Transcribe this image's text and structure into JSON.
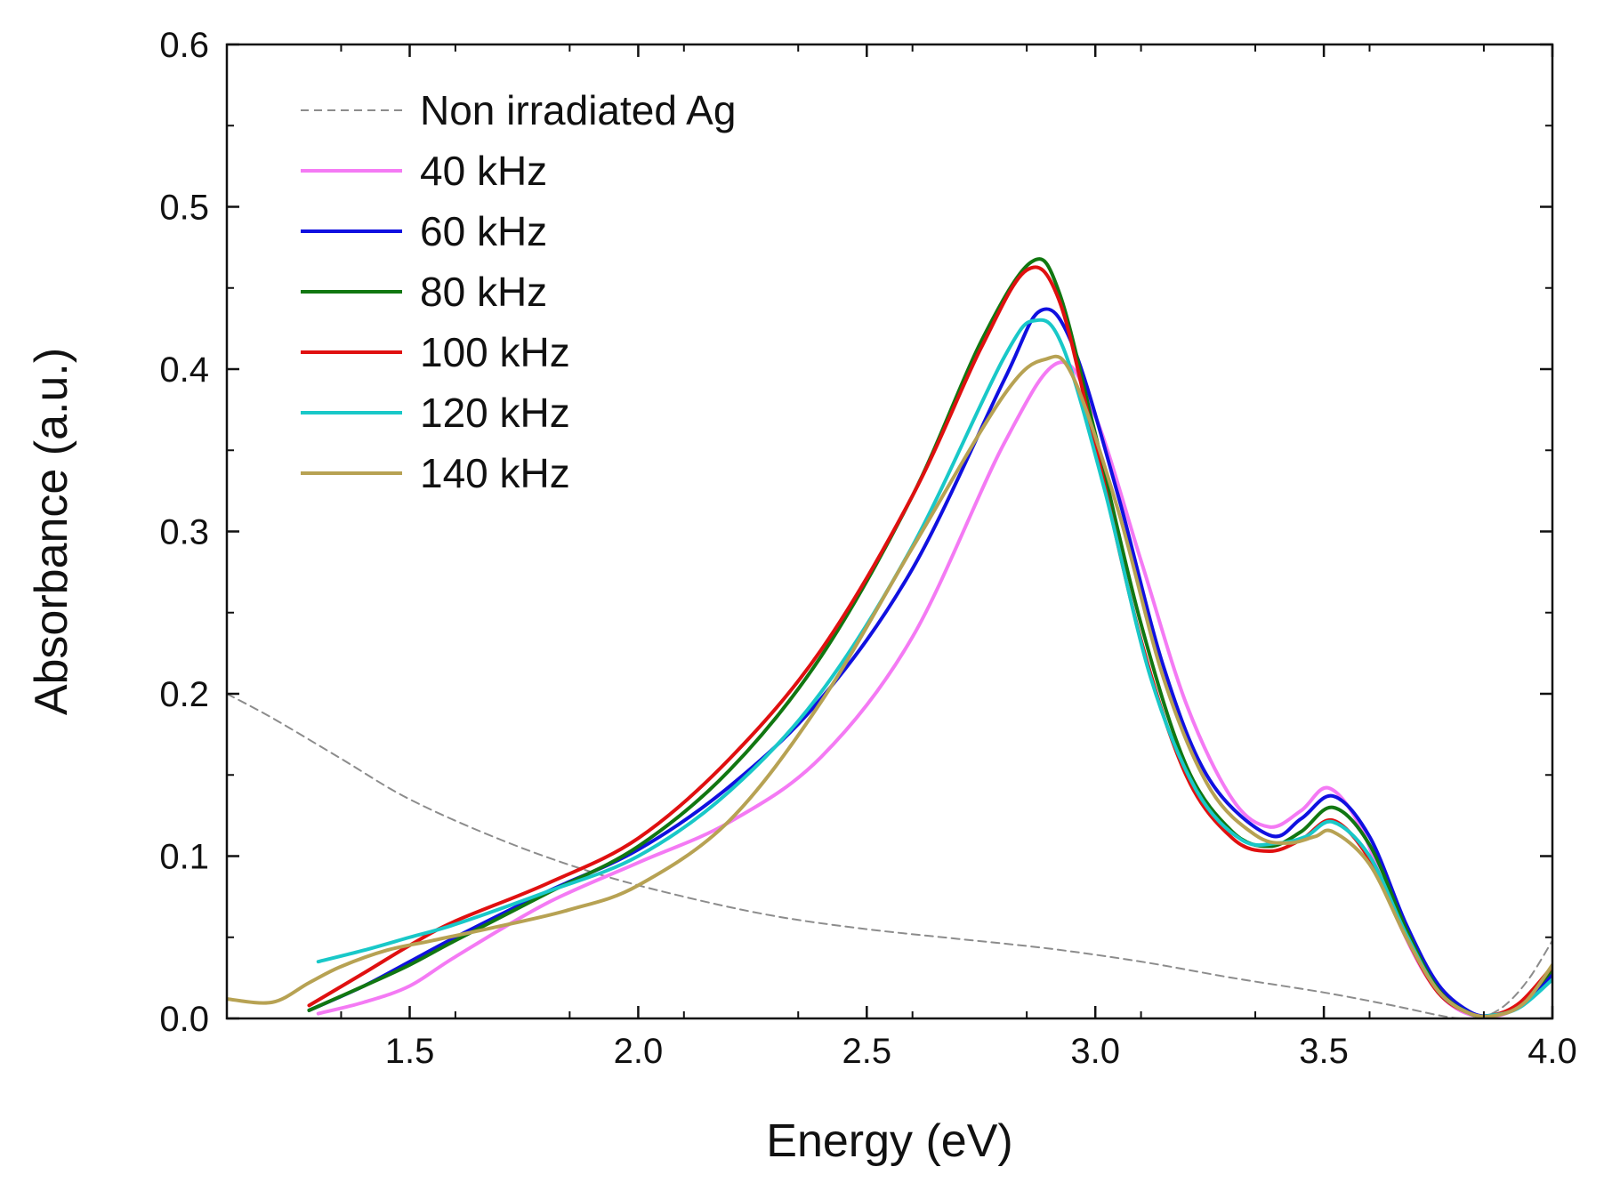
{
  "chart_data": {
    "type": "line",
    "title": "",
    "xlabel": "Energy (eV)",
    "ylabel": "Absorbance (a.u.)",
    "xlim": [
      1.1,
      4.0
    ],
    "ylim": [
      0.0,
      0.6
    ],
    "xticks": [
      1.5,
      2.0,
      2.5,
      3.0,
      3.5,
      4.0
    ],
    "yticks": [
      0.0,
      0.1,
      0.2,
      0.3,
      0.4,
      0.5,
      0.6
    ],
    "xtick_labels": [
      "1.5",
      "2.0",
      "2.5",
      "3.0",
      "3.5",
      "4.0"
    ],
    "ytick_labels": [
      "0.0",
      "0.1",
      "0.2",
      "0.3",
      "0.4",
      "0.5",
      "0.6"
    ],
    "grid": false,
    "legend": {
      "placement": "top-left",
      "entries": [
        "Non irradiated Ag",
        "40 kHz",
        "60 kHz",
        "80 kHz",
        "100 kHz",
        "120 kHz",
        "140 kHz"
      ]
    },
    "series": [
      {
        "name": "Non irradiated Ag",
        "color": "#8c8c8c",
        "style": "dashed",
        "x": [
          1.1,
          1.2,
          1.35,
          1.5,
          1.7,
          1.9,
          2.1,
          2.3,
          2.5,
          2.7,
          2.9,
          3.1,
          3.3,
          3.5,
          3.65,
          3.75,
          3.8,
          3.85,
          3.9,
          3.95,
          4.0
        ],
        "y": [
          0.2,
          0.185,
          0.16,
          0.135,
          0.11,
          0.09,
          0.075,
          0.063,
          0.055,
          0.049,
          0.043,
          0.035,
          0.025,
          0.016,
          0.008,
          0.002,
          0.0,
          0.001,
          0.009,
          0.025,
          0.048
        ]
      },
      {
        "name": "40 kHz",
        "color": "#f47af4",
        "style": "solid",
        "x": [
          1.3,
          1.4,
          1.5,
          1.6,
          1.8,
          2.0,
          2.2,
          2.4,
          2.6,
          2.8,
          2.92,
          3.0,
          3.1,
          3.2,
          3.3,
          3.38,
          3.45,
          3.51,
          3.58,
          3.65,
          3.72,
          3.78,
          3.85,
          3.92,
          4.0
        ],
        "y": [
          0.003,
          0.01,
          0.02,
          0.038,
          0.071,
          0.096,
          0.121,
          0.161,
          0.235,
          0.354,
          0.404,
          0.371,
          0.282,
          0.193,
          0.135,
          0.118,
          0.128,
          0.142,
          0.118,
          0.068,
          0.028,
          0.008,
          0.001,
          0.006,
          0.026
        ]
      },
      {
        "name": "60 kHz",
        "color": "#1010e0",
        "style": "solid",
        "x": [
          1.28,
          1.4,
          1.5,
          1.6,
          1.8,
          2.0,
          2.2,
          2.4,
          2.6,
          2.8,
          2.88,
          2.95,
          3.05,
          3.15,
          3.25,
          3.38,
          3.45,
          3.52,
          3.6,
          3.68,
          3.75,
          3.82,
          3.87,
          3.93,
          4.0
        ],
        "y": [
          0.005,
          0.02,
          0.035,
          0.05,
          0.078,
          0.104,
          0.143,
          0.197,
          0.277,
          0.393,
          0.436,
          0.415,
          0.322,
          0.216,
          0.147,
          0.113,
          0.123,
          0.137,
          0.112,
          0.058,
          0.021,
          0.004,
          0.002,
          0.008,
          0.027
        ]
      },
      {
        "name": "80 kHz",
        "color": "#117711",
        "style": "solid",
        "x": [
          1.28,
          1.4,
          1.5,
          1.6,
          1.8,
          2.0,
          2.2,
          2.4,
          2.6,
          2.75,
          2.86,
          2.92,
          3.0,
          3.1,
          3.2,
          3.3,
          3.38,
          3.45,
          3.52,
          3.6,
          3.68,
          3.75,
          3.82,
          3.87,
          3.93,
          4.0
        ],
        "y": [
          0.005,
          0.02,
          0.033,
          0.048,
          0.077,
          0.106,
          0.153,
          0.223,
          0.322,
          0.417,
          0.466,
          0.448,
          0.36,
          0.243,
          0.155,
          0.115,
          0.106,
          0.115,
          0.13,
          0.107,
          0.055,
          0.018,
          0.003,
          0.002,
          0.009,
          0.03
        ]
      },
      {
        "name": "100 kHz",
        "color": "#e01010",
        "style": "solid",
        "x": [
          1.28,
          1.4,
          1.5,
          1.6,
          1.8,
          2.0,
          2.2,
          2.4,
          2.6,
          2.75,
          2.85,
          2.92,
          3.0,
          3.1,
          3.2,
          3.3,
          3.38,
          3.45,
          3.52,
          3.6,
          3.68,
          3.75,
          3.82,
          3.87,
          3.93,
          4.0
        ],
        "y": [
          0.008,
          0.028,
          0.045,
          0.06,
          0.083,
          0.111,
          0.16,
          0.227,
          0.322,
          0.413,
          0.461,
          0.443,
          0.353,
          0.233,
          0.149,
          0.111,
          0.103,
          0.11,
          0.122,
          0.098,
          0.05,
          0.016,
          0.003,
          0.002,
          0.01,
          0.032
        ]
      },
      {
        "name": "120 kHz",
        "color": "#19c8c8",
        "style": "solid",
        "x": [
          1.3,
          1.4,
          1.5,
          1.6,
          1.8,
          2.0,
          2.2,
          2.4,
          2.6,
          2.8,
          2.87,
          2.93,
          3.02,
          3.12,
          3.22,
          3.32,
          3.4,
          3.46,
          3.52,
          3.6,
          3.68,
          3.75,
          3.82,
          3.87,
          3.93,
          4.0
        ],
        "y": [
          0.035,
          0.042,
          0.05,
          0.058,
          0.078,
          0.1,
          0.14,
          0.201,
          0.291,
          0.407,
          0.43,
          0.413,
          0.326,
          0.211,
          0.141,
          0.11,
          0.108,
          0.112,
          0.121,
          0.1,
          0.052,
          0.017,
          0.003,
          0.002,
          0.007,
          0.024
        ]
      },
      {
        "name": "140 kHz",
        "color": "#b7a253",
        "style": "solid",
        "x": [
          1.1,
          1.2,
          1.28,
          1.35,
          1.45,
          1.55,
          1.7,
          1.85,
          2.0,
          2.2,
          2.4,
          2.6,
          2.8,
          2.89,
          2.95,
          3.05,
          3.15,
          3.25,
          3.35,
          3.42,
          3.48,
          3.52,
          3.6,
          3.68,
          3.75,
          3.82,
          3.88,
          3.94,
          4.0
        ],
        "y": [
          0.012,
          0.01,
          0.022,
          0.032,
          0.042,
          0.048,
          0.057,
          0.067,
          0.082,
          0.122,
          0.195,
          0.29,
          0.384,
          0.406,
          0.396,
          0.313,
          0.209,
          0.142,
          0.113,
          0.108,
          0.112,
          0.115,
          0.095,
          0.05,
          0.017,
          0.003,
          0.002,
          0.01,
          0.033
        ]
      }
    ]
  }
}
